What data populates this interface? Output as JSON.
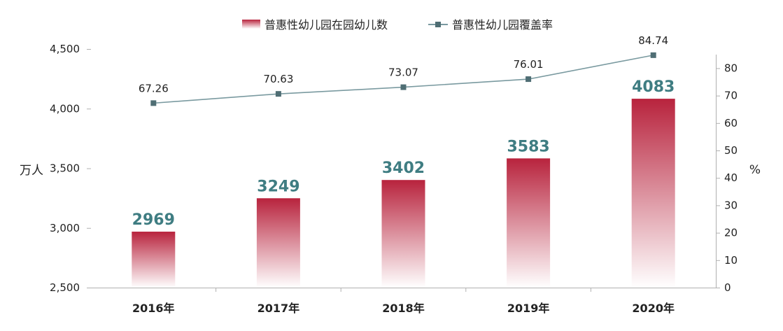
{
  "chart_data": {
    "type": "bar",
    "categories": [
      "2016年",
      "2017年",
      "2018年",
      "2019年",
      "2020年"
    ],
    "series": [
      {
        "name": "普惠性幼儿园在园幼儿数",
        "type": "bar",
        "axis": "left",
        "values": [
          2969,
          3249,
          3402,
          3583,
          4083
        ],
        "data_labels": [
          "2969",
          "3249",
          "3402",
          "3583",
          "4083"
        ]
      },
      {
        "name": "普惠性幼儿园覆盖率",
        "type": "line",
        "axis": "right",
        "values": [
          67.26,
          70.63,
          73.07,
          76.01,
          84.74
        ],
        "data_labels": [
          "67.26",
          "70.63",
          "73.07",
          "76.01",
          "84.74"
        ]
      }
    ],
    "ylabel_left": "万人",
    "ylabel_right": "%",
    "ylim_left": [
      2500,
      4500
    ],
    "yticks_left": [
      "2,500",
      "3,000",
      "3,500",
      "4,000",
      "4,500"
    ],
    "ylim_right": [
      0,
      87
    ],
    "yticks_right": [
      "0",
      "10",
      "20",
      "30",
      "40",
      "50",
      "60",
      "70",
      "80"
    ],
    "grid": false,
    "legend_position": "top-center"
  },
  "colors": {
    "bar_top": "#b8233d",
    "bar_bottom": "#ffffff",
    "line": "#7a9aa0",
    "marker": "#4f6e74",
    "bar_label": "#3f7d82",
    "axis": "#b0b0b0"
  }
}
